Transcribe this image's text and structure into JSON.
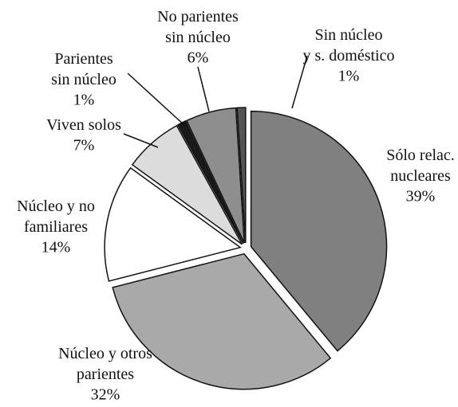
{
  "chart_data": {
    "type": "pie",
    "categories": [
      "Sólo relac.\nnucleares",
      "Núcleo y otros\nparientes",
      "Núcleo y no\nfamiliares",
      "Viven solos",
      "Parientes\nsin núcleo",
      "No parientes\nsin núcleo",
      "Sin núcleo\ny s. doméstico"
    ],
    "values": [
      39,
      32,
      14,
      7,
      1,
      6,
      1
    ],
    "value_labels": [
      "39%",
      "32%",
      "14%",
      "7%",
      "1%",
      "6%",
      "1%"
    ],
    "colors": [
      "#808080",
      "#a9a9a9",
      "#ffffff",
      "#dcdcdc",
      "#1a1a1a",
      "#8e8e8e",
      "#555555"
    ]
  }
}
